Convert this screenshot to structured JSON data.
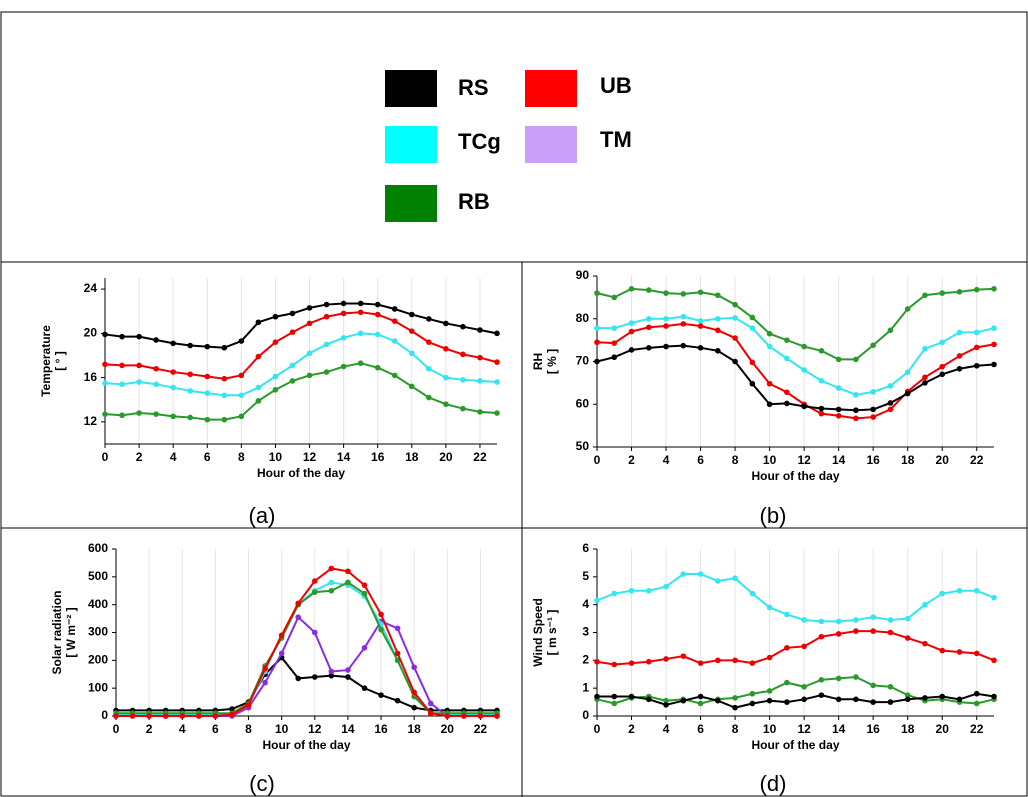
{
  "legend": [
    {
      "name": "RS",
      "color": "#000000"
    },
    {
      "name": "UB",
      "color": "#ff0000"
    },
    {
      "name": "TCg",
      "color": "#00ffff"
    },
    {
      "name": "TM",
      "color": "#c8a0f8"
    },
    {
      "name": "RB",
      "color": "#008000"
    }
  ],
  "chart_data": [
    {
      "type": "line",
      "panel_label": "(a)",
      "xlabel": "Hour of the day",
      "ylabel": [
        "Temperature",
        "[ ° ]"
      ],
      "x": [
        0,
        1,
        2,
        3,
        4,
        5,
        6,
        7,
        8,
        9,
        10,
        11,
        12,
        13,
        14,
        15,
        16,
        17,
        18,
        19,
        20,
        21,
        22,
        23
      ],
      "xlim": [
        0,
        23
      ],
      "xticks": [
        0,
        2,
        4,
        6,
        8,
        10,
        12,
        14,
        16,
        18,
        20,
        22
      ],
      "ylim": [
        10,
        25
      ],
      "yticks": [
        12,
        16,
        20,
        24
      ],
      "grid": true,
      "series": [
        {
          "name": "RS",
          "color": "#000000",
          "values": [
            19.9,
            19.7,
            19.7,
            19.4,
            19.1,
            18.9,
            18.8,
            18.7,
            19.3,
            21.0,
            21.5,
            21.8,
            22.3,
            22.6,
            22.7,
            22.7,
            22.6,
            22.2,
            21.7,
            21.3,
            20.9,
            20.6,
            20.3,
            20.0
          ]
        },
        {
          "name": "UB",
          "color": "#ee0000",
          "values": [
            17.2,
            17.1,
            17.1,
            16.8,
            16.5,
            16.3,
            16.1,
            15.9,
            16.2,
            17.9,
            19.2,
            20.1,
            20.9,
            21.5,
            21.8,
            21.9,
            21.7,
            21.1,
            20.2,
            19.2,
            18.6,
            18.1,
            17.8,
            17.4
          ]
        },
        {
          "name": "TCg",
          "color": "#33e6f0",
          "values": [
            15.5,
            15.4,
            15.6,
            15.4,
            15.1,
            14.8,
            14.6,
            14.4,
            14.4,
            15.1,
            16.1,
            17.1,
            18.2,
            19.0,
            19.6,
            20.0,
            19.9,
            19.3,
            18.2,
            16.8,
            16.0,
            15.8,
            15.7,
            15.6
          ]
        },
        {
          "name": "RB",
          "color": "#2a9a2a",
          "values": [
            12.7,
            12.6,
            12.8,
            12.7,
            12.5,
            12.4,
            12.2,
            12.2,
            12.5,
            13.9,
            14.9,
            15.7,
            16.2,
            16.5,
            17.0,
            17.3,
            16.9,
            16.2,
            15.2,
            14.2,
            13.6,
            13.2,
            12.9,
            12.8
          ]
        }
      ]
    },
    {
      "type": "line",
      "panel_label": "(b)",
      "xlabel": "Hour of the day",
      "ylabel": [
        "RH",
        "[ % ]"
      ],
      "x": [
        0,
        1,
        2,
        3,
        4,
        5,
        6,
        7,
        8,
        9,
        10,
        11,
        12,
        13,
        14,
        15,
        16,
        17,
        18,
        19,
        20,
        21,
        22,
        23
      ],
      "xlim": [
        0,
        23
      ],
      "xticks": [
        0,
        2,
        4,
        6,
        8,
        10,
        12,
        14,
        16,
        18,
        20,
        22
      ],
      "ylim": [
        50,
        90
      ],
      "yticks": [
        50,
        60,
        70,
        80,
        90
      ],
      "grid": true,
      "series": [
        {
          "name": "RB",
          "color": "#2a9a2a",
          "values": [
            86,
            85,
            87,
            86.7,
            86,
            85.8,
            86.2,
            85.5,
            83.3,
            80.3,
            76.5,
            75,
            73.5,
            72.5,
            70.5,
            70.5,
            73.8,
            77.3,
            82.3,
            85.5,
            86,
            86.3,
            86.8,
            87
          ]
        },
        {
          "name": "TCg",
          "color": "#33e6f0",
          "values": [
            77.8,
            77.8,
            79,
            80,
            80,
            80.5,
            79.5,
            80,
            80.2,
            77.8,
            73.5,
            70.7,
            68,
            65.5,
            63.8,
            62.2,
            62.9,
            64.3,
            67.5,
            73,
            74.5,
            76.8,
            76.8,
            77.8
          ]
        },
        {
          "name": "UB",
          "color": "#ee0000",
          "values": [
            74.5,
            74.3,
            77,
            78,
            78.3,
            78.8,
            78.3,
            77.3,
            75.5,
            69.8,
            64.8,
            62.8,
            60,
            57.8,
            57.3,
            56.7,
            57,
            58.8,
            63,
            66.3,
            68.8,
            71.3,
            73.3,
            74
          ]
        },
        {
          "name": "RS",
          "color": "#000000",
          "values": [
            70,
            71,
            72.7,
            73.2,
            73.5,
            73.7,
            73.2,
            72.5,
            70,
            64.8,
            60,
            60.2,
            59.5,
            59,
            58.8,
            58.6,
            58.8,
            60.3,
            62.5,
            65,
            67,
            68.3,
            69,
            69.3
          ]
        }
      ]
    },
    {
      "type": "line",
      "panel_label": "(c)",
      "xlabel": "Hour of the day",
      "ylabel": [
        "Solar radiation",
        "[ W m⁻² ]"
      ],
      "x": [
        0,
        1,
        2,
        3,
        4,
        5,
        6,
        7,
        8,
        9,
        10,
        11,
        12,
        13,
        14,
        15,
        16,
        17,
        18,
        19,
        20,
        21,
        22,
        23
      ],
      "xlim": [
        0,
        23
      ],
      "xticks": [
        0,
        2,
        4,
        6,
        8,
        10,
        12,
        14,
        16,
        18,
        20,
        22
      ],
      "ylim": [
        0,
        600
      ],
      "yticks": [
        0,
        100,
        200,
        300,
        400,
        500,
        600
      ],
      "grid": true,
      "series": [
        {
          "name": "RS",
          "color": "#000000",
          "values": [
            20,
            20,
            20,
            20,
            20,
            20,
            20,
            25,
            50,
            150,
            210,
            135,
            140,
            145,
            140,
            100,
            75,
            55,
            30,
            20,
            20,
            20,
            20,
            20
          ]
        },
        {
          "name": "TM",
          "color": "#8b2be2",
          "values": [
            0,
            0,
            0,
            0,
            0,
            0,
            0,
            0,
            30,
            120,
            225,
            355,
            300,
            160,
            165,
            245,
            340,
            315,
            175,
            45,
            0,
            0,
            0,
            0
          ]
        },
        {
          "name": "TCg",
          "color": "#33e6f0",
          "values": [
            5,
            5,
            5,
            5,
            5,
            5,
            5,
            5,
            40,
            160,
            290,
            400,
            450,
            480,
            470,
            430,
            330,
            200,
            70,
            10,
            5,
            5,
            5,
            5
          ]
        },
        {
          "name": "RB",
          "color": "#2a9a2a",
          "values": [
            10,
            10,
            10,
            10,
            10,
            10,
            10,
            10,
            45,
            180,
            280,
            400,
            445,
            450,
            480,
            440,
            310,
            200,
            70,
            10,
            10,
            10,
            10,
            10
          ]
        },
        {
          "name": "UB",
          "color": "#ee0000",
          "values": [
            0,
            0,
            0,
            0,
            0,
            0,
            0,
            5,
            40,
            170,
            290,
            405,
            485,
            530,
            520,
            470,
            365,
            225,
            85,
            10,
            0,
            0,
            0,
            0
          ]
        }
      ]
    },
    {
      "type": "line",
      "panel_label": "(d)",
      "xlabel": "Hour of the day",
      "ylabel": [
        "Wind Speed",
        "[ m s⁻¹ ]"
      ],
      "x": [
        0,
        1,
        2,
        3,
        4,
        5,
        6,
        7,
        8,
        9,
        10,
        11,
        12,
        13,
        14,
        15,
        16,
        17,
        18,
        19,
        20,
        21,
        22,
        23
      ],
      "xlim": [
        0,
        23
      ],
      "xticks": [
        0,
        2,
        4,
        6,
        8,
        10,
        12,
        14,
        16,
        18,
        20,
        22
      ],
      "ylim": [
        0,
        6
      ],
      "yticks": [
        0,
        1,
        2,
        3,
        4,
        5,
        6
      ],
      "grid": true,
      "series": [
        {
          "name": "TCg",
          "color": "#33e6f0",
          "values": [
            4.15,
            4.4,
            4.5,
            4.5,
            4.65,
            5.1,
            5.1,
            4.85,
            4.95,
            4.4,
            3.9,
            3.65,
            3.45,
            3.4,
            3.4,
            3.45,
            3.55,
            3.45,
            3.5,
            4.0,
            4.4,
            4.5,
            4.5,
            4.25
          ]
        },
        {
          "name": "UB",
          "color": "#ee0000",
          "values": [
            1.95,
            1.85,
            1.9,
            1.95,
            2.05,
            2.15,
            1.9,
            2.0,
            2.0,
            1.9,
            2.1,
            2.45,
            2.5,
            2.85,
            2.95,
            3.05,
            3.05,
            3.0,
            2.8,
            2.6,
            2.35,
            2.3,
            2.25,
            2.0
          ]
        },
        {
          "name": "RB",
          "color": "#2a9a2a",
          "values": [
            0.6,
            0.45,
            0.65,
            0.7,
            0.55,
            0.6,
            0.45,
            0.6,
            0.65,
            0.8,
            0.9,
            1.2,
            1.05,
            1.3,
            1.35,
            1.4,
            1.1,
            1.05,
            0.75,
            0.55,
            0.6,
            0.5,
            0.45,
            0.6
          ]
        },
        {
          "name": "RS",
          "color": "#000000",
          "values": [
            0.7,
            0.7,
            0.7,
            0.6,
            0.4,
            0.55,
            0.7,
            0.55,
            0.3,
            0.45,
            0.55,
            0.5,
            0.6,
            0.75,
            0.6,
            0.6,
            0.5,
            0.5,
            0.6,
            0.65,
            0.7,
            0.6,
            0.8,
            0.7
          ]
        }
      ]
    }
  ]
}
